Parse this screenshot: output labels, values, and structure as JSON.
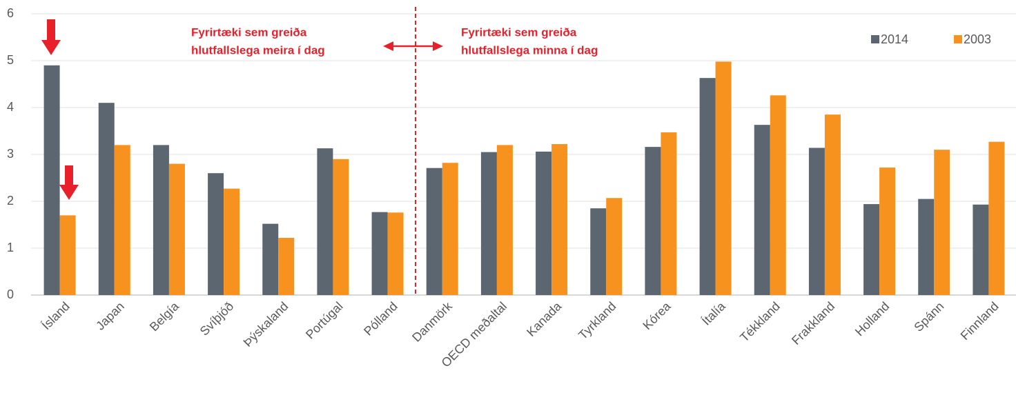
{
  "chart_data": {
    "type": "bar",
    "categories": [
      "Ísland",
      "Japan",
      "Belgía",
      "Svíþjóð",
      "Þýskaland",
      "Portúgal",
      "Pólland",
      "Danmörk",
      "OECD meðaltal",
      "Kanada",
      "Tyrkland",
      "Kórea",
      "Ítalía",
      "Tékkland",
      "Frakkland",
      "Holland",
      "Spánn",
      "Finnland"
    ],
    "series": [
      {
        "name": "2014",
        "color": "#5b6670",
        "values": [
          4.9,
          4.1,
          3.2,
          2.6,
          1.52,
          3.13,
          1.77,
          2.71,
          3.05,
          3.06,
          1.85,
          3.16,
          4.63,
          3.63,
          3.14,
          1.94,
          2.05,
          1.93
        ]
      },
      {
        "name": "2003",
        "color": "#f7921e",
        "values": [
          1.7,
          3.2,
          2.8,
          2.27,
          1.22,
          2.9,
          1.76,
          2.82,
          3.2,
          3.22,
          2.07,
          3.47,
          4.98,
          4.26,
          3.85,
          2.72,
          3.1,
          3.27
        ]
      }
    ],
    "ylim": [
      0,
      6
    ],
    "yticks": [
      0,
      1,
      2,
      3,
      4,
      5,
      6
    ],
    "grid": true,
    "legend": "top-right",
    "annotations": [
      {
        "lines": [
          "Fyrirtæki sem greiða",
          "hlutfallslega meira í dag"
        ]
      },
      {
        "lines": [
          "Fyrirtæki sem greiða",
          "hlutfallslega minna í dag"
        ]
      }
    ]
  }
}
